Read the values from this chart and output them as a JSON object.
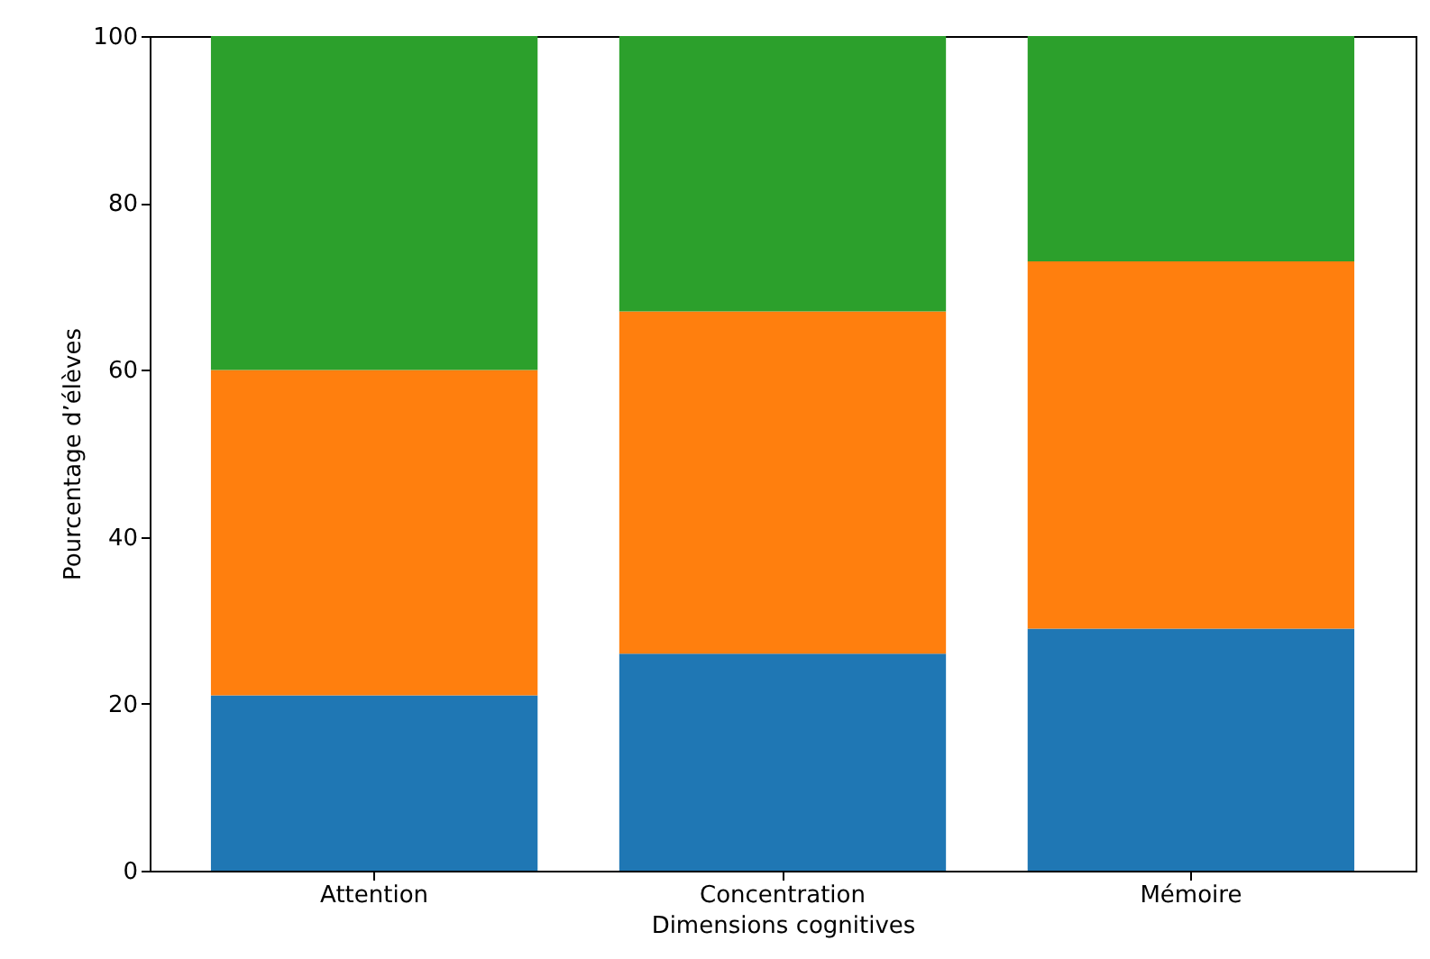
{
  "chart_data": {
    "type": "bar",
    "stacked": true,
    "xlabel": "Dimensions cognitives",
    "ylabel": "Pourcentage d’élèves",
    "categories": [
      "Attention",
      "Concentration",
      "Mémoire"
    ],
    "series": [
      {
        "color": "#1f77b4",
        "values": [
          21,
          26,
          29
        ]
      },
      {
        "color": "#ff7f0e",
        "values": [
          39,
          41,
          44
        ]
      },
      {
        "color": "#2ca02c",
        "values": [
          40,
          33,
          27
        ]
      }
    ],
    "ylim": [
      0,
      100
    ],
    "yticks": [
      0,
      20,
      40,
      60,
      80,
      100
    ],
    "grid": false,
    "legend": false
  }
}
